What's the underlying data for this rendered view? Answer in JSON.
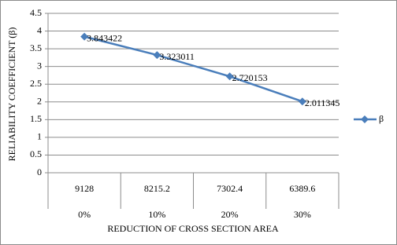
{
  "chart_data": {
    "type": "line",
    "categories": [
      "9128",
      "8215.2",
      "7302.4",
      "6389.6"
    ],
    "category_groups": [
      "0%",
      "10%",
      "20%",
      "30%"
    ],
    "x_label": "REDUCTION OF CROSS SECTION AREA",
    "y_label": "RELIABILITY COEFFICIENT (β)",
    "series": [
      {
        "name": "β",
        "color": "#4a7ebb",
        "values": [
          3.843422,
          3.323011,
          2.720153,
          2.011345
        ]
      }
    ],
    "ylim": [
      0,
      4.5
    ],
    "yticks": [
      0,
      0.5,
      1,
      1.5,
      2,
      2.5,
      3,
      3.5,
      4,
      4.5
    ],
    "grid": true,
    "legend": "right"
  }
}
